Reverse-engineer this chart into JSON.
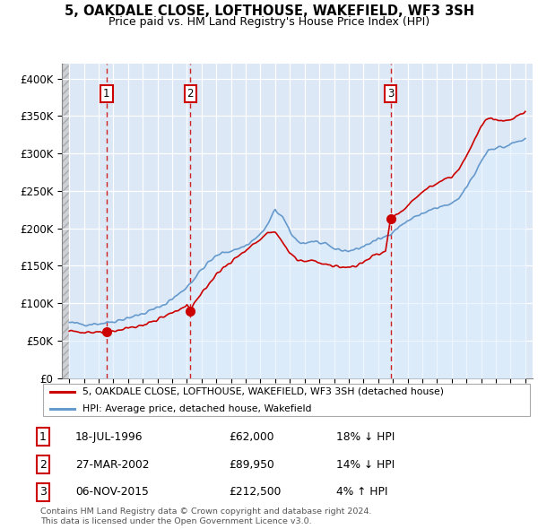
{
  "title": "5, OAKDALE CLOSE, LOFTHOUSE, WAKEFIELD, WF3 3SH",
  "subtitle": "Price paid vs. HM Land Registry's House Price Index (HPI)",
  "sale_dates": [
    1996.54,
    2002.23,
    2015.84
  ],
  "sale_prices": [
    62000,
    89950,
    212500
  ],
  "sale_labels": [
    "1",
    "2",
    "3"
  ],
  "red_line_color": "#cc0000",
  "blue_line_color": "#6699cc",
  "blue_fill_color": "#ddeeff",
  "dashed_line_color": "#cc0000",
  "table_entries": [
    {
      "num": "1",
      "date": "18-JUL-1996",
      "price": "£62,000",
      "pct": "18% ↓ HPI"
    },
    {
      "num": "2",
      "date": "27-MAR-2002",
      "price": "£89,950",
      "pct": "14% ↓ HPI"
    },
    {
      "num": "3",
      "date": "06-NOV-2015",
      "price": "£212,500",
      "pct": "4% ↑ HPI"
    }
  ],
  "legend_entries": [
    "5, OAKDALE CLOSE, LOFTHOUSE, WAKEFIELD, WF3 3SH (detached house)",
    "HPI: Average price, detached house, Wakefield"
  ],
  "footer": [
    "Contains HM Land Registry data © Crown copyright and database right 2024.",
    "This data is licensed under the Open Government Licence v3.0."
  ],
  "ylim": [
    0,
    420000
  ],
  "xlim_start": 1993.5,
  "xlim_end": 2025.5,
  "yticks": [
    0,
    50000,
    100000,
    150000,
    200000,
    250000,
    300000,
    350000,
    400000
  ],
  "ytick_labels": [
    "£0",
    "£50K",
    "£100K",
    "£150K",
    "£200K",
    "£250K",
    "£300K",
    "£350K",
    "£400K"
  ],
  "plot_bg_color": "#dce8f5",
  "hatch_cutoff": 1994.0
}
